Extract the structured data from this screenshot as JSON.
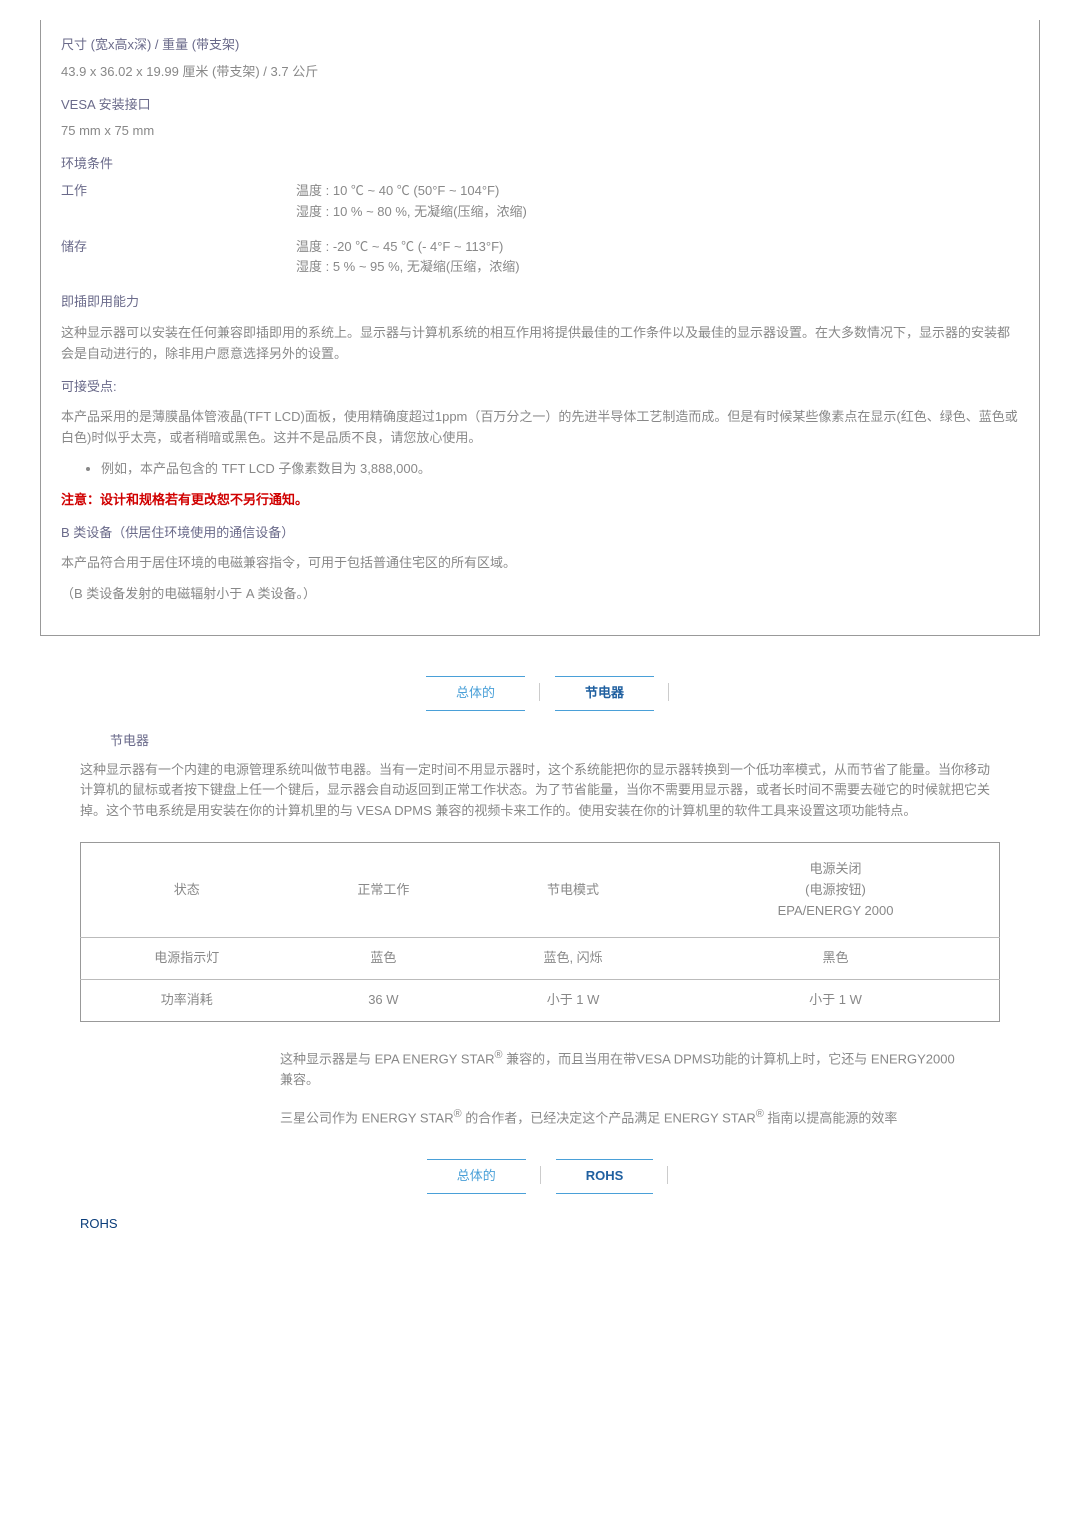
{
  "spec": {
    "dim_heading": "尺寸 (宽x高x深) / 重量 (带支架)",
    "dim_value": "43.9 x 36.02 x 19.99 厘米 (带支架) / 3.7 公斤",
    "vesa_heading": "VESA 安装接口",
    "vesa_value": "75 mm x 75 mm",
    "env_heading": "环境条件",
    "env_op_label": "工作",
    "env_op_temp": "温度 : 10 ℃ ~ 40 ℃ (50°F ~ 104°F)",
    "env_op_hum": "湿度 : 10 % ~ 80 %, 无凝缩(压缩，浓缩)",
    "env_st_label": "储存",
    "env_st_temp": "温度 : -20 ℃ ~ 45 ℃ (- 4°F ~ 113°F)",
    "env_st_hum": "湿度 : 5 % ~ 95 %, 无凝缩(压缩，浓缩)",
    "pnp_heading": "即插即用能力",
    "pnp_text": "这种显示器可以安装在任何兼容即插即用的系统上。显示器与计算机系统的相互作用将提供最佳的工作条件以及最佳的显示器设置。在大多数情况下，显示器的安装都会是自动进行的，除非用户愿意选择另外的设置。",
    "accept_heading": "可接受点:",
    "accept_text": "本产品采用的是薄膜晶体管液晶(TFT LCD)面板，使用精确度超过1ppm（百万分之一）的先进半导体工艺制造而成。但是有时候某些像素点在显示(红色、绿色、蓝色或白色)时似乎太亮，或者稍暗或黑色。这并不是品质不良，请您放心使用。",
    "accept_bullet": "例如，本产品包含的 TFT LCD 子像素数目为 3,888,000。",
    "notice": "注意：设计和规格若有更改恕不另行通知。",
    "class_b_1": "B 类设备（供居住环境使用的通信设备）",
    "class_b_2": "本产品符合用于居住环境的电磁兼容指令，可用于包括普通住宅区的所有区域。",
    "class_b_3": "（B 类设备发射的电磁辐射小于 A 类设备。）"
  },
  "tabs1": {
    "left": "总体的",
    "right": "节电器"
  },
  "power": {
    "title": "节电器",
    "desc": "这种显示器有一个内建的电源管理系统叫做节电器。当有一定时间不用显示器时，这个系统能把你的显示器转换到一个低功率模式，从而节省了能量。当你移动计算机的鼠标或者按下键盘上任一个键后，显示器会自动返回到正常工作状态。为了节省能量，当你不需要用显示器，或者长时间不需要去碰它的时候就把它关掉。这个节电系统是用安装在你的计算机里的与 VESA DPMS 兼容的视频卡来工作的。使用安装在你的计算机里的软件工具来设置这项功能特点。",
    "table": {
      "h1": "状态",
      "h2": "正常工作",
      "h3": "节电模式",
      "h4a": "电源关闭",
      "h4b": "(电源按钮)",
      "h4c": "EPA/ENERGY 2000",
      "r1c1": "电源指示灯",
      "r1c2": "蓝色",
      "r1c3": "蓝色, 闪烁",
      "r1c4": "黑色",
      "r2c1": "功率消耗",
      "r2c2": "36 W",
      "r2c3": "小于 1 W",
      "r2c4": "小于 1 W"
    },
    "note1_pre": "这种显示器是与 EPA ENERGY STAR",
    "note1_post": " 兼容的，而且当用在带VESA DPMS功能的计算机上时，它还与 ENERGY2000 兼容。",
    "note2_pre": "三星公司作为 ENERGY STAR",
    "note2_mid": " 的合作者，已经决定这个产品满足 ENERGY STAR",
    "note2_post": " 指南以提高能源的效率",
    "reg": "®"
  },
  "tabs2": {
    "left": "总体的",
    "right": "ROHS"
  },
  "rohs": "ROHS"
}
